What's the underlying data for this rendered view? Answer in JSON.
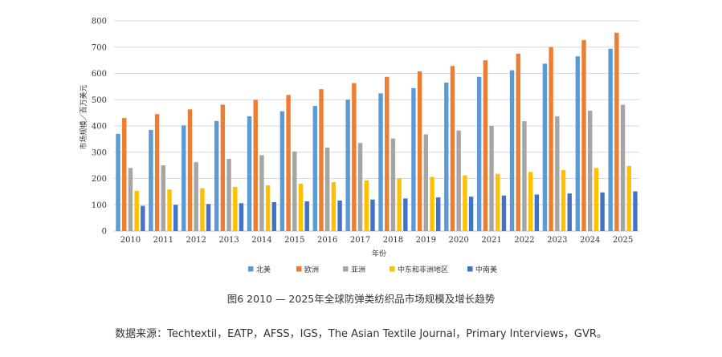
{
  "caption": "图6 2010 — 2025年全球防弹类纺织品市场规模及增长趋势",
  "source_note": "数据来源：Techtextil，EATP，AFSS，IGS，The Asian Textile Journal，Primary Interviews，GVR。",
  "chart_data": {
    "type": "bar",
    "title": "",
    "xlabel": "年份",
    "ylabel": "市场规模／百万美元",
    "ylim": [
      0,
      800
    ],
    "yticks": [
      0,
      100,
      200,
      300,
      400,
      500,
      600,
      700,
      800
    ],
    "grid": true,
    "legend_position": "bottom",
    "categories": [
      "2010",
      "2011",
      "2012",
      "2013",
      "2014",
      "2015",
      "2016",
      "2017",
      "2018",
      "2019",
      "2020",
      "2021",
      "2022",
      "2023",
      "2024",
      "2025"
    ],
    "series": [
      {
        "name": "北美",
        "color": "#5b9bd5",
        "values": [
          370,
          385,
          402,
          419,
          437,
          456,
          476,
          500,
          524,
          544,
          565,
          587,
          612,
          637,
          665,
          694
        ]
      },
      {
        "name": "欧洲",
        "color": "#ed7d31",
        "values": [
          430,
          445,
          463,
          481,
          499,
          518,
          540,
          563,
          587,
          608,
          628,
          650,
          675,
          700,
          727,
          755
        ]
      },
      {
        "name": "亚洲",
        "color": "#a5a5a5",
        "values": [
          240,
          250,
          262,
          275,
          289,
          303,
          318,
          335,
          352,
          368,
          383,
          400,
          418,
          437,
          458,
          481
        ]
      },
      {
        "name": "中东和非洲地区",
        "color": "#ffc000",
        "values": [
          153,
          158,
          163,
          168,
          174,
          180,
          186,
          193,
          200,
          206,
          212,
          218,
          225,
          232,
          240,
          248
        ]
      },
      {
        "name": "中南美",
        "color": "#4472c4",
        "values": [
          96,
          100,
          103,
          106,
          110,
          113,
          116,
          120,
          124,
          128,
          131,
          135,
          139,
          143,
          147,
          151
        ]
      }
    ]
  }
}
